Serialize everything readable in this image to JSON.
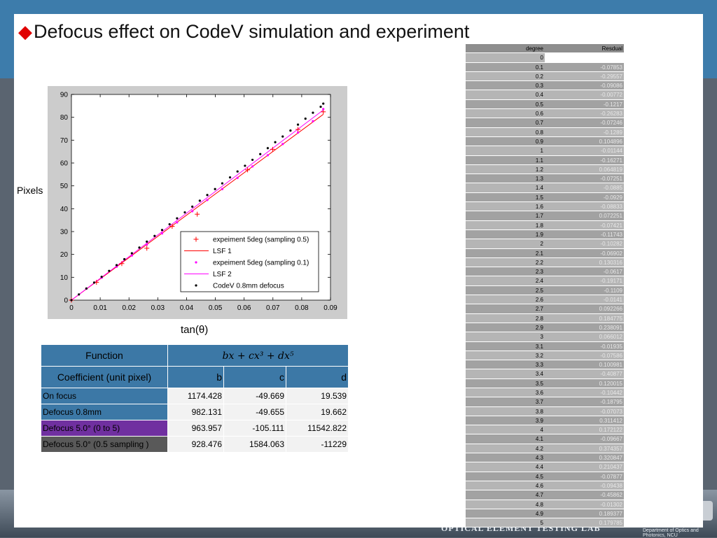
{
  "title": "Defocus effect  on CodeV simulation and experiment",
  "ylabel_text": "Pixels",
  "xlabel_text": "tan(θ)",
  "footer": {
    "lab": "OPTICAL ELEMENT TESTING LAB",
    "dept": "Department of Optics and Photonics, NCU"
  },
  "coef_table": {
    "function_label": "Function",
    "formula": "bx    + cx³ + dx⁵",
    "coef_label": "Coefficient (unit pixel)",
    "col_b": "b",
    "col_c": "c",
    "col_d": "d",
    "rows": [
      {
        "label": "On focus",
        "b": "1174.428",
        "c": "-49.669",
        "d": "19.539",
        "color": "#3c78a6"
      },
      {
        "label": "Defocus 0.8mm",
        "b": "982.131",
        "c": "-49.655",
        "d": "19.662",
        "color": "#3c78a6"
      },
      {
        "label": "Defocus  5.0°  (0 to 5)",
        "b": "963.957",
        "c": "-105.111",
        "d": "11542.822",
        "color": "#7030a0"
      },
      {
        "label": "Defocus  5.0°  (0.5  sampling )",
        "b": "928.476",
        "c": "1584.063",
        "d": "-11229",
        "color": "#595959"
      }
    ]
  },
  "residual_table": {
    "col_degree": "degree",
    "col_residual": "Resdual",
    "rows": [
      [
        "0",
        ""
      ],
      [
        "0.1",
        "-0.07853"
      ],
      [
        "0.2",
        "-0.29557"
      ],
      [
        "0.3",
        "-0.09086"
      ],
      [
        "0.4",
        "-0.00772"
      ],
      [
        "0.5",
        "-0.1217"
      ],
      [
        "0.6",
        "-0.26283"
      ],
      [
        "0.7",
        "-0.07246"
      ],
      [
        "0.8",
        "-0.1289"
      ],
      [
        "0.9",
        "0.104896"
      ],
      [
        "1",
        "-0.01144"
      ],
      [
        "1.1",
        "-0.16271"
      ],
      [
        "1.2",
        "0.064819"
      ],
      [
        "1.3",
        "-0.07251"
      ],
      [
        "1.4",
        "-0.0885"
      ],
      [
        "1.5",
        "-0.0929"
      ],
      [
        "1.6",
        "-0.08833"
      ],
      [
        "1.7",
        "0.072251"
      ],
      [
        "1.8",
        "-0.07421"
      ],
      [
        "1.9",
        "-0.11743"
      ],
      [
        "2",
        "-0.10282"
      ],
      [
        "2.1",
        "-0.06902"
      ],
      [
        "2.2",
        "0.130316"
      ],
      [
        "2.3",
        "-0.0617"
      ],
      [
        "2.4",
        "-0.19171"
      ],
      [
        "2.5",
        "-0.1109"
      ],
      [
        "2.6",
        "-0.0141"
      ],
      [
        "2.7",
        "0.092266"
      ],
      [
        "2.8",
        "0.184775"
      ],
      [
        "2.9",
        "0.238091"
      ],
      [
        "3",
        "0.066012"
      ],
      [
        "3.1",
        "-0.01935"
      ],
      [
        "3.2",
        "-0.07586"
      ],
      [
        "3.3",
        "0.100981"
      ],
      [
        "3.4",
        "-0.40877"
      ],
      [
        "3.5",
        "0.120015"
      ],
      [
        "3.6",
        "-0.10442"
      ],
      [
        "3.7",
        "-0.18795"
      ],
      [
        "3.8",
        "-0.07073"
      ],
      [
        "3.9",
        "0.311412"
      ],
      [
        "4",
        "0.172122"
      ],
      [
        "4.1",
        "-0.09667"
      ],
      [
        "4.2",
        "0.374357"
      ],
      [
        "4.3",
        "0.320847"
      ],
      [
        "4.4",
        "0.210437"
      ],
      [
        "4.5",
        "-0.07877"
      ],
      [
        "4.6",
        "-0.09438"
      ],
      [
        "4.7",
        "-0.45862"
      ],
      [
        "4.8",
        "-0.01302"
      ],
      [
        "4.9",
        "0.189377"
      ],
      [
        "5",
        "0.179785"
      ]
    ]
  },
  "chart_data": {
    "type": "scatter",
    "xlim": [
      0,
      0.09
    ],
    "ylim": [
      0,
      90
    ],
    "xticks": [
      0,
      0.01,
      0.02,
      0.03,
      0.04,
      0.05,
      0.06,
      0.07,
      0.08,
      0.09
    ],
    "yticks": [
      0,
      10,
      20,
      30,
      40,
      50,
      60,
      70,
      80,
      90
    ],
    "xlabel": "tan(θ)",
    "ylabel": "Pixels",
    "grid": false,
    "legend_position": "bottom-right",
    "series": [
      {
        "name": "expeiment 5deg (sampling 0.5)",
        "marker": "plus",
        "color": "#ff0000",
        "x": [
          0,
          0.0087,
          0.0175,
          0.0262,
          0.035,
          0.0437,
          0.0612,
          0.0699,
          0.0787,
          0.0875
        ],
        "y": [
          0,
          7.8,
          16.0,
          22.7,
          32.3,
          37.6,
          57.0,
          66.0,
          74.7,
          82.4
        ]
      },
      {
        "name": "LSF 1",
        "line": true,
        "color": "#ff0000",
        "x": [
          0,
          0.0875
        ],
        "y": [
          0,
          81.3
        ]
      },
      {
        "name": "expeiment 5deg (sampling 0.1)",
        "marker": "dot",
        "color": "#ff00ff",
        "x": [
          0,
          0.0052,
          0.0105,
          0.0157,
          0.021,
          0.0262,
          0.0315,
          0.0367,
          0.042,
          0.0472,
          0.0524,
          0.0577,
          0.0629,
          0.0682,
          0.0734,
          0.0787,
          0.0839,
          0.0875
        ],
        "y": [
          0,
          5.0,
          9.8,
          14.6,
          19.5,
          24.3,
          29.2,
          34.0,
          38.9,
          43.8,
          48.6,
          53.5,
          58.5,
          63.4,
          68.3,
          73.3,
          78.3,
          83.6
        ]
      },
      {
        "name": "LSF 2",
        "line": true,
        "color": "#ff00ff",
        "x": [
          0,
          0.0875
        ],
        "y": [
          0,
          83.2
        ]
      },
      {
        "name": "CodeV 0.8mm defocus",
        "marker": "dot",
        "color": "#000000",
        "x": [
          0,
          0.0026,
          0.0052,
          0.0079,
          0.0105,
          0.0131,
          0.0157,
          0.0184,
          0.021,
          0.0236,
          0.0262,
          0.0289,
          0.0315,
          0.0341,
          0.0367,
          0.0394,
          0.042,
          0.0446,
          0.0472,
          0.0499,
          0.0524,
          0.0551,
          0.0577,
          0.0603,
          0.0629,
          0.0656,
          0.0682,
          0.0708,
          0.0734,
          0.0761,
          0.0787,
          0.0813,
          0.0839,
          0.0866,
          0.0875
        ],
        "y": [
          0,
          2.5,
          5.1,
          7.7,
          10.2,
          12.8,
          15.3,
          17.9,
          20.5,
          23.0,
          25.6,
          28.1,
          30.7,
          33.2,
          35.8,
          38.4,
          40.9,
          43.5,
          46.0,
          48.6,
          51.1,
          53.7,
          56.3,
          58.8,
          61.4,
          63.9,
          66.5,
          69.1,
          71.6,
          74.2,
          76.8,
          79.4,
          82.0,
          84.6,
          86.0
        ]
      }
    ]
  }
}
